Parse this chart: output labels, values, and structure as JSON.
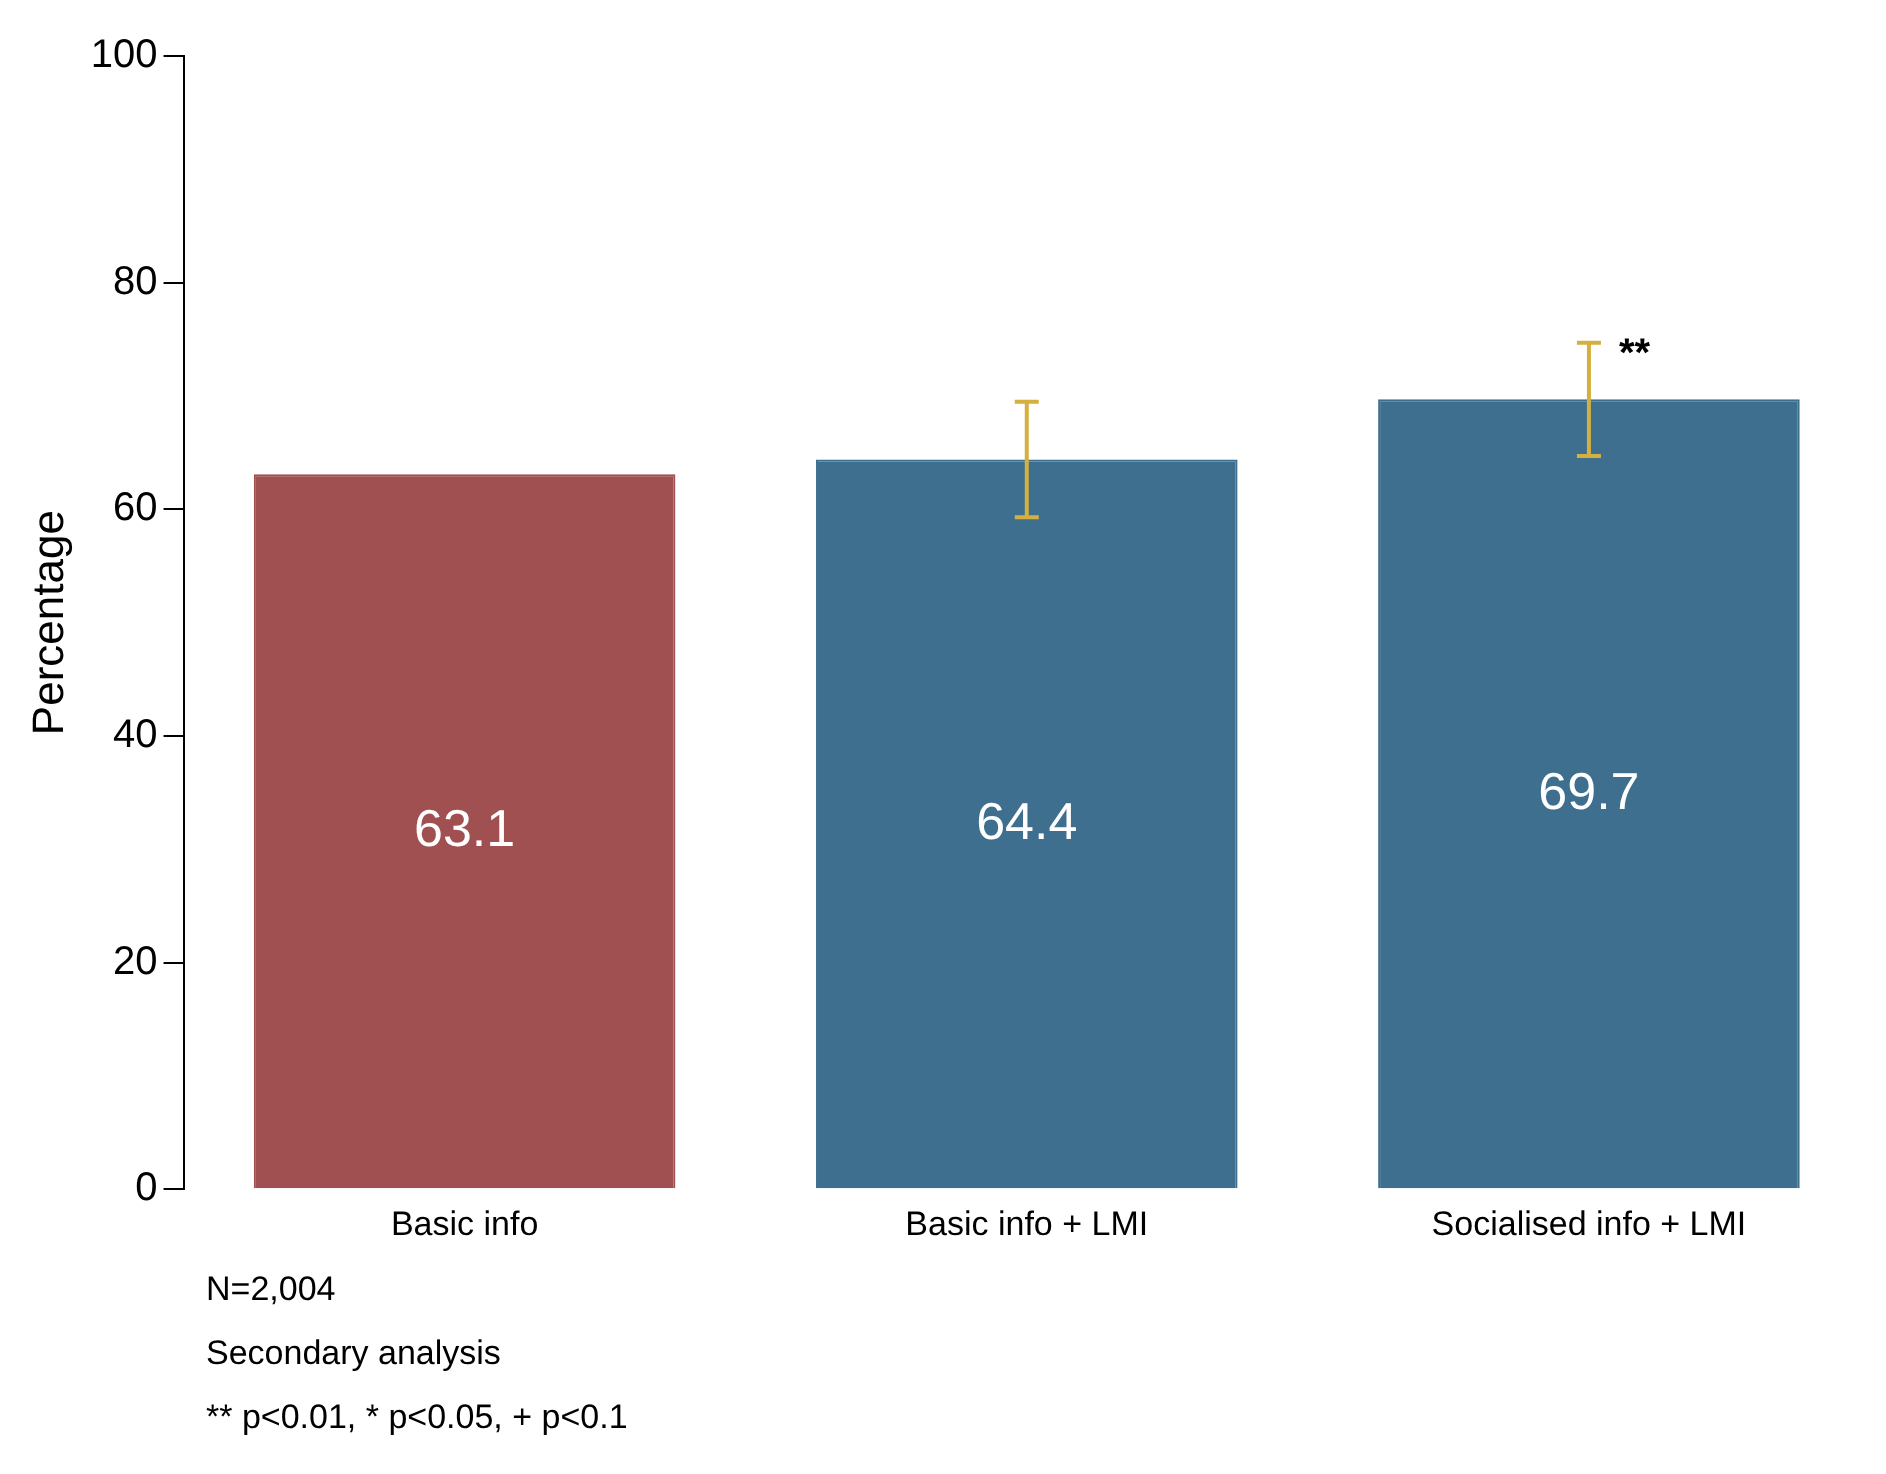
{
  "chart_data": {
    "type": "bar",
    "ylabel": "Percentage",
    "categories": [
      "Basic info",
      "Basic info + LMI",
      "Socialised info + LMI"
    ],
    "values": [
      63.1,
      64.4,
      69.7
    ],
    "colors": [
      "#a05050",
      "#3e6f8f",
      "#3e6f8f"
    ],
    "errors": [
      null,
      [
        59.3,
        69.5
      ],
      [
        64.7,
        74.7
      ]
    ],
    "ylim": [
      0,
      100
    ],
    "yticks": [
      0,
      20,
      40,
      60,
      80,
      100
    ],
    "grid": false,
    "legend": false,
    "data_labels": true,
    "annotations": [
      {
        "text": "**",
        "x": "Socialised info + LMI",
        "y": 74.7
      },
      "N=2,004",
      "Secondary analysis",
      "** p<0.01, * p<0.05, + p<0.1"
    ]
  }
}
